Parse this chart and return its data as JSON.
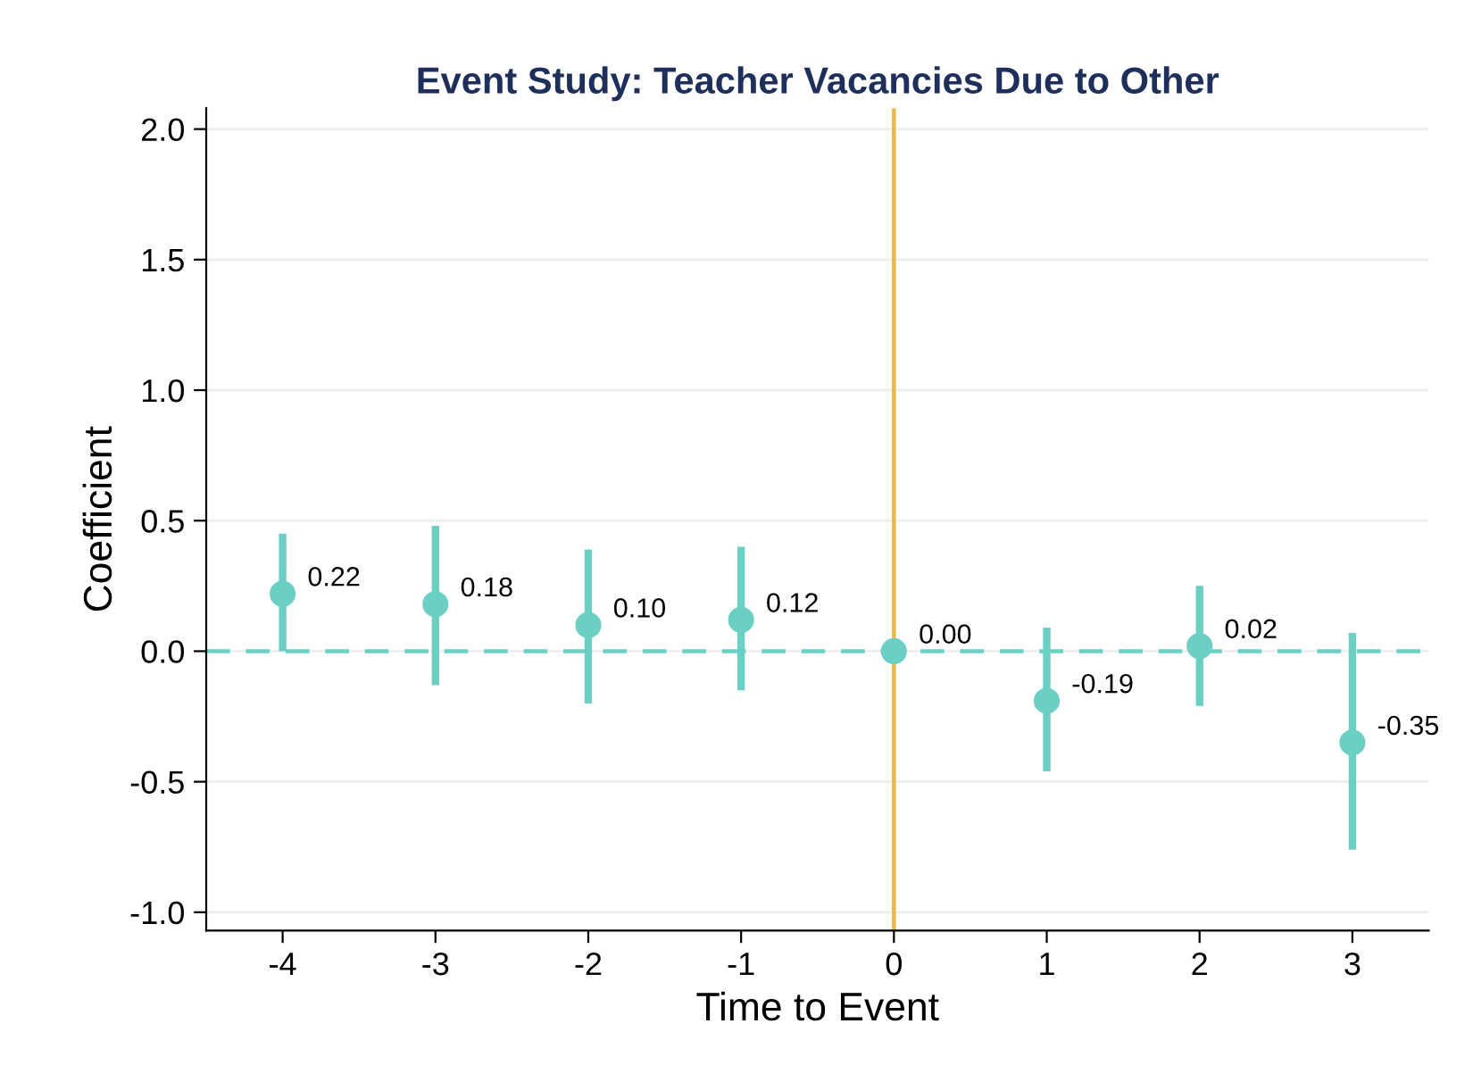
{
  "chart_data": {
    "type": "scatter",
    "title": "Event Study: Teacher Vacancies Due to Other",
    "xlabel": "Time to Event",
    "ylabel": "Coefficient",
    "x": [
      -4,
      -3,
      -2,
      -1,
      0,
      1,
      2,
      3
    ],
    "values": [
      0.22,
      0.18,
      0.1,
      0.12,
      0.0,
      -0.19,
      0.02,
      -0.35
    ],
    "value_labels": [
      "0.22",
      "0.18",
      "0.10",
      "0.12",
      "0.00",
      "-0.19",
      "0.02",
      "-0.35"
    ],
    "errors": [
      [
        0.0,
        0.45
      ],
      [
        -0.13,
        0.48
      ],
      [
        -0.2,
        0.39
      ],
      [
        -0.15,
        0.4
      ],
      null,
      [
        -0.46,
        0.09
      ],
      [
        -0.21,
        0.25
      ],
      [
        -0.76,
        0.07
      ]
    ],
    "color": "#6ccfc4",
    "marker": "circle",
    "xlim": [
      -4.5,
      3.5
    ],
    "xticks": [
      {
        "value": -4,
        "label": "-4"
      },
      {
        "value": -3,
        "label": "-3"
      },
      {
        "value": -2,
        "label": "-2"
      },
      {
        "value": -1,
        "label": "-1"
      },
      0,
      1,
      2,
      3
    ],
    "ylim": [
      -1.07,
      2.08
    ],
    "yticks": [
      {
        "value": -1.0,
        "label": "-1.0"
      },
      {
        "value": -0.5,
        "label": "-0.5"
      },
      {
        "value": 0.0,
        "label": "0.0"
      },
      0.5,
      {
        "value": 1.0,
        "label": "1.0"
      },
      1.5,
      {
        "value": 2.0,
        "label": "2.0"
      }
    ],
    "grid": "y",
    "ref_lines": [
      {
        "axis": "x",
        "value": 0,
        "color": "#e8b84a",
        "line_style": "solid"
      },
      {
        "axis": "y",
        "value": 0,
        "color": "#6ccfc4",
        "line_style": "dashed"
      }
    ]
  }
}
